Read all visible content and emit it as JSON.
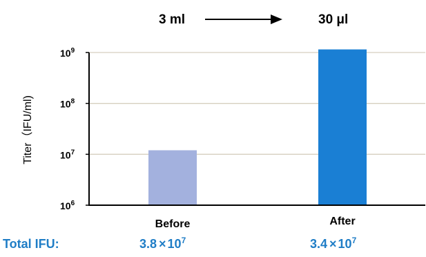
{
  "header": {
    "from_label": "3 ml",
    "to_label": "30 μl"
  },
  "footer": {
    "total_label": "Total IFU:",
    "before_total": {
      "mantissa": "3.8",
      "times": "×",
      "base": "10",
      "exp": "7"
    },
    "after_total": {
      "mantissa": "3.4",
      "times": "×",
      "base": "10",
      "exp": "7"
    }
  },
  "colors": {
    "before_bar": "#a3b1de",
    "after_bar": "#1a7fd4",
    "total_text": "#1f7dc6",
    "grid": "#d6cfbf",
    "axis": "#000000"
  },
  "chart_data": {
    "type": "bar",
    "categories": [
      "Before",
      "After"
    ],
    "values": [
      12000000,
      1150000000
    ],
    "ylabel": "Titer（IFU/ml)",
    "yscale": "log",
    "ylim": [
      1000000,
      1000000000
    ],
    "yticks": [
      {
        "value": 1000000,
        "base": "10",
        "exp": "6"
      },
      {
        "value": 10000000,
        "base": "10",
        "exp": "7"
      },
      {
        "value": 100000000,
        "base": "10",
        "exp": "8"
      },
      {
        "value": 1000000000,
        "base": "10",
        "exp": "9"
      }
    ],
    "grid": true
  }
}
